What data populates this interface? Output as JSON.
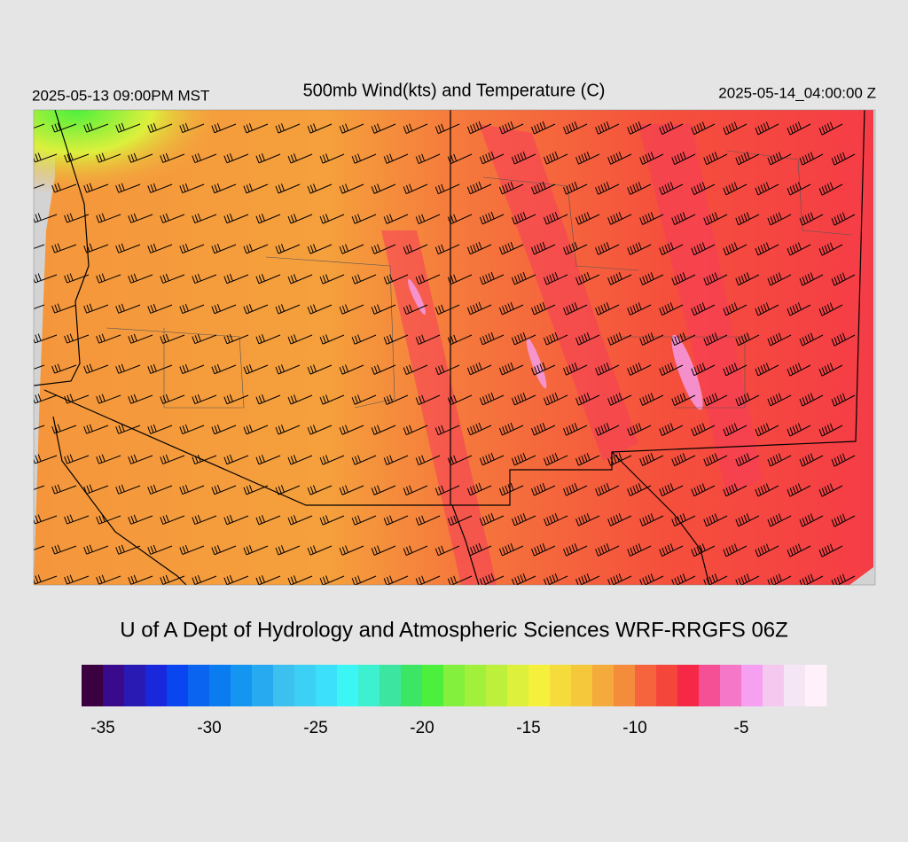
{
  "header": {
    "left": "2025-05-13 09:00PM MST",
    "title": "500mb Wind(kts) and Temperature (C)",
    "right": "2025-05-14_04:00:00 Z"
  },
  "credit": "U of A Dept of Hydrology and Atmospheric Sciences WRF-RRGFS 06Z",
  "colorbar": {
    "lim": [
      -36,
      -1
    ],
    "colors": [
      "#3a0040",
      "#3a0a8c",
      "#2a1ab4",
      "#1a28dc",
      "#0a46f0",
      "#0a64f0",
      "#0a7cf0",
      "#1496f0",
      "#28aaf0",
      "#3cc0f0",
      "#3cd0f5",
      "#3ce0fa",
      "#3cf5f5",
      "#3cf0d0",
      "#3ce6a0",
      "#3ce664",
      "#4cf03c",
      "#82f03c",
      "#a0f03c",
      "#bcf03c",
      "#dcf03c",
      "#f5f03c",
      "#f5dc3c",
      "#f5c83c",
      "#f5aa3c",
      "#f58c3c",
      "#f5643c",
      "#f5463c",
      "#f52846",
      "#f55096",
      "#f578c8",
      "#f5a0f0",
      "#f5c8f0",
      "#f5e6f5",
      "#fff0fa"
    ],
    "ticks": [
      -35,
      -30,
      -25,
      -20,
      -15,
      -10,
      -5
    ]
  }
}
